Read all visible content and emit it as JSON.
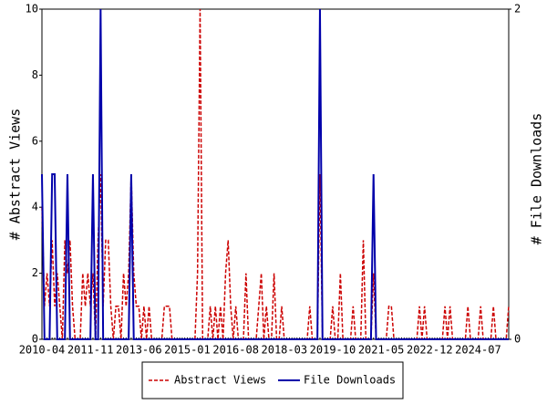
{
  "chart_data": {
    "type": "line",
    "categories": [
      "2010-04",
      null,
      null,
      null,
      null,
      null,
      null,
      null,
      null,
      null,
      null,
      null,
      null,
      null,
      null,
      null,
      null,
      null,
      null,
      "2011-11",
      null,
      null,
      null,
      null,
      null,
      null,
      null,
      null,
      null,
      null,
      null,
      null,
      null,
      null,
      null,
      null,
      null,
      null,
      "2013-06",
      null,
      null,
      null,
      null,
      null,
      null,
      null,
      null,
      null,
      null,
      null,
      null,
      null,
      null,
      null,
      null,
      null,
      null,
      "2015-01",
      null,
      null,
      null,
      null,
      null,
      null,
      null,
      null,
      null,
      null,
      null,
      null,
      null,
      null,
      null,
      null,
      null,
      null,
      "2016-08",
      null,
      null,
      null,
      null,
      null,
      null,
      null,
      null,
      null,
      null,
      null,
      null,
      null,
      null,
      null,
      null,
      null,
      null,
      "2018-03",
      null,
      null,
      null,
      null,
      null,
      null,
      null,
      null,
      null,
      null,
      null,
      null,
      null,
      null,
      null,
      null,
      null,
      null,
      "2019-10",
      null,
      null,
      null,
      null,
      null,
      null,
      null,
      null,
      null,
      null,
      null,
      null,
      null,
      null,
      null,
      null,
      null,
      null,
      "2021-05",
      null,
      null,
      null,
      null,
      null,
      null,
      null,
      null,
      null,
      null,
      null,
      null,
      null,
      null,
      null,
      null,
      null,
      null,
      "2022-12",
      null,
      null,
      null,
      null,
      null,
      null,
      null,
      null,
      null,
      null,
      null,
      null,
      null,
      null,
      null,
      null,
      null,
      null,
      "2024-07",
      null,
      null,
      null,
      null,
      null,
      null,
      null,
      null,
      null,
      null,
      null,
      null
    ],
    "series": [
      {
        "name": "Abstract Views",
        "color": "#cc0000",
        "dash": true,
        "values": [
          4,
          1,
          2,
          1,
          3,
          1,
          2,
          1,
          0,
          3,
          2,
          3,
          1,
          0,
          0,
          0,
          2,
          1,
          2,
          1,
          2,
          0,
          3,
          5,
          1,
          3,
          3,
          1,
          0,
          1,
          1,
          0,
          2,
          1,
          2,
          5,
          2,
          1,
          1,
          0,
          1,
          0,
          1,
          0,
          0,
          0,
          0,
          0,
          1,
          1,
          1,
          0,
          0,
          0,
          0,
          0,
          0,
          0,
          0,
          0,
          0,
          2,
          10,
          0,
          0,
          0,
          1,
          0,
          1,
          0,
          1,
          0,
          2,
          3,
          1,
          0,
          1,
          0,
          0,
          0,
          2,
          0,
          0,
          0,
          0,
          1,
          2,
          0,
          1,
          0,
          0,
          2,
          0,
          0,
          1,
          0,
          0,
          0,
          0,
          0,
          0,
          0,
          0,
          0,
          0,
          1,
          0,
          0,
          0,
          5,
          0,
          0,
          0,
          0,
          1,
          0,
          0,
          2,
          0,
          0,
          0,
          0,
          1,
          0,
          0,
          0,
          3,
          0,
          0,
          0,
          2,
          0,
          0,
          0,
          0,
          0,
          1,
          1,
          0,
          0,
          0,
          0,
          0,
          0,
          0,
          0,
          0,
          0,
          1,
          0,
          1,
          0,
          0,
          0,
          0,
          0,
          0,
          0,
          1,
          0,
          1,
          0,
          0,
          0,
          0,
          0,
          0,
          1,
          0,
          0,
          0,
          0,
          1,
          0,
          0,
          0,
          0,
          1,
          0,
          0,
          0,
          0,
          0,
          1
        ]
      },
      {
        "name": "File Downloads",
        "color": "#0000aa",
        "axis": "y2",
        "values": [
          1,
          0,
          0,
          0,
          1,
          1,
          0,
          0,
          0,
          0,
          1,
          0,
          0,
          0,
          0,
          0,
          0,
          0,
          0,
          0,
          1,
          0,
          0,
          2,
          0,
          0,
          0,
          0,
          0,
          0,
          0,
          0,
          0,
          0,
          0,
          1,
          0,
          0,
          0,
          0,
          0,
          0,
          0,
          0,
          0,
          0,
          0,
          0,
          0,
          0,
          0,
          0,
          0,
          0,
          0,
          0,
          0,
          0,
          0,
          0,
          0,
          0,
          0,
          0,
          0,
          0,
          0,
          0,
          0,
          0,
          0,
          0,
          0,
          0,
          0,
          0,
          0,
          0,
          0,
          0,
          0,
          0,
          0,
          0,
          0,
          0,
          0,
          0,
          0,
          0,
          0,
          0,
          0,
          0,
          0,
          0,
          0,
          0,
          0,
          0,
          0,
          0,
          0,
          0,
          0,
          0,
          0,
          0,
          0,
          2,
          0,
          0,
          0,
          0,
          0,
          0,
          0,
          0,
          0,
          0,
          0,
          0,
          0,
          0,
          0,
          0,
          0,
          0,
          0,
          0,
          1,
          0,
          0,
          0,
          0,
          0,
          0,
          0,
          0,
          0,
          0,
          0,
          0,
          0,
          0,
          0,
          0,
          0,
          0,
          0,
          0,
          0,
          0,
          0,
          0,
          0,
          0,
          0,
          0,
          0,
          0,
          0,
          0,
          0,
          0,
          0,
          0,
          0,
          0,
          0,
          0,
          0,
          0,
          0,
          0,
          0,
          0,
          0,
          0,
          0,
          0,
          0,
          0,
          0
        ]
      }
    ],
    "ylabel": "# Abstract Views",
    "y2label": "# File Downloads",
    "ylim": [
      0,
      10
    ],
    "yticks": [
      0,
      2,
      4,
      6,
      8,
      10
    ],
    "y2lim": [
      0,
      2
    ],
    "y2ticks": [
      0,
      2
    ],
    "legend": "bottom"
  }
}
